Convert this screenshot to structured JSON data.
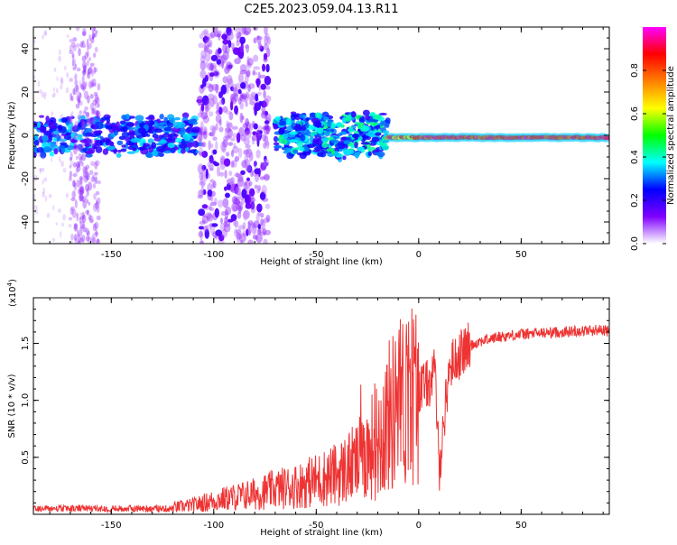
{
  "title": "C2E5.2023.059.04.13.R11",
  "chart_data": [
    {
      "type": "heatmap",
      "xlabel": "Height of straight line (km)",
      "ylabel": "Frequency (Hz)",
      "xlim": [
        -188,
        93
      ],
      "ylim": [
        -50,
        50
      ],
      "xticks": [
        -150,
        -100,
        -50,
        0,
        50
      ],
      "yticks": [
        -40,
        -20,
        0,
        20,
        40
      ],
      "colorbar": {
        "label": "Normalized spectral amplitude",
        "range": [
          0,
          1
        ],
        "ticks": [
          0.0,
          0.2,
          0.4,
          0.6,
          0.8
        ],
        "tick_labels": [
          "0.0",
          "0.2",
          "0.4",
          "0.6",
          "0.8"
        ],
        "colors": [
          "#ffffff",
          "#7f00ff",
          "#0000ff",
          "#00ffff",
          "#00ff00",
          "#ffff00",
          "#ff7f00",
          "#ff0000",
          "#ff00ff"
        ]
      },
      "regions": [
        {
          "x_range": [
            -188,
            -107
          ],
          "band_half_width_hz": 8,
          "level": 0.25
        },
        {
          "x_range": [
            -107,
            -73
          ],
          "band_half_width_hz": 50,
          "level": 0.15
        },
        {
          "x_range": [
            -70,
            -15
          ],
          "band_half_width_hz": 9,
          "level": 0.3
        },
        {
          "x_range": [
            -15,
            93
          ],
          "band_half_width_hz": 2,
          "level": 0.9
        }
      ]
    },
    {
      "type": "line",
      "xlabel": "Height of straight line (km)",
      "ylabel": "SNR (10 * v/v)",
      "y_multiplier": "(x10",
      "y_multiplier_exp": "4",
      "y_multiplier_close": ")",
      "xlim": [
        -188,
        93
      ],
      "ylim": [
        0,
        1.9
      ],
      "xticks": [
        -150,
        -100,
        -50,
        0,
        50
      ],
      "yticks": [
        0.5,
        1.0,
        1.5
      ],
      "ytick_labels": [
        "0.5",
        "1.0",
        "1.5"
      ],
      "series": [
        {
          "color": "#ee3333",
          "x": [
            -188,
            -170,
            -150,
            -130,
            -110,
            -100,
            -90,
            -80,
            -70,
            -60,
            -50,
            -40,
            -30,
            -25,
            -20,
            -15,
            -10,
            -5,
            0,
            5,
            8,
            10,
            15,
            20,
            25,
            30,
            40,
            50,
            60,
            70,
            80,
            90,
            93
          ],
          "y": [
            0.03,
            0.03,
            0.02,
            0.04,
            0.08,
            0.12,
            0.15,
            0.18,
            0.22,
            0.25,
            0.3,
            0.35,
            0.45,
            0.55,
            0.65,
            0.85,
            0.95,
            1.05,
            1.1,
            1.15,
            1.25,
            0.4,
            1.3,
            1.4,
            1.48,
            1.52,
            1.56,
            1.58,
            1.59,
            1.6,
            1.61,
            1.62,
            1.6
          ]
        }
      ]
    }
  ]
}
